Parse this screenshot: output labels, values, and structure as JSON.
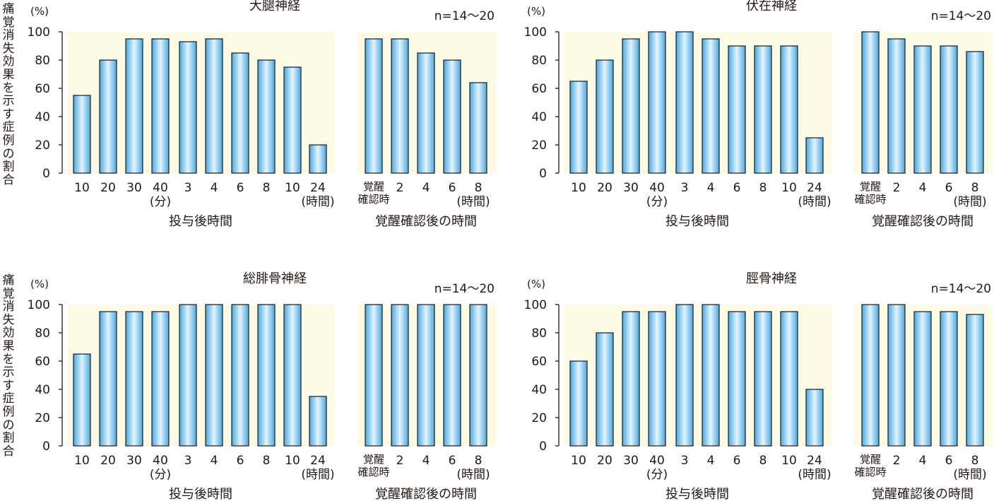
{
  "y_axis_label": "痛覚消失効果を示す症例の割合",
  "y_unit": "(%)",
  "n_label": "n=14～20",
  "x_group_labels": {
    "post_dose": "投与後時間",
    "post_awake": "覚醒確認後の時間"
  },
  "colors": {
    "plot_background": "#fdfbe6",
    "bar_fill_edge": "#4aa8e0",
    "bar_fill_center": "#e3f4fc",
    "bar_stroke": "#1b1b1b",
    "text": "#231815"
  },
  "chart_data": [
    {
      "type": "bar",
      "title": "大腿神経",
      "ylim": [
        0,
        100
      ],
      "yticks": [
        0,
        20,
        40,
        60,
        80,
        100
      ],
      "categories": [
        "10",
        "20",
        "30",
        "40",
        "3",
        "4",
        "6",
        "8",
        "10",
        "24",
        "覚醒確認時",
        "2",
        "4",
        "6",
        "8"
      ],
      "values": [
        55,
        80,
        95,
        95,
        93,
        95,
        85,
        80,
        75,
        20,
        95,
        95,
        85,
        80,
        64
      ],
      "unit_labels": {
        "3": "(分)",
        "9": "(時間)",
        "14": "(時間)"
      }
    },
    {
      "type": "bar",
      "title": "伏在神経",
      "ylim": [
        0,
        100
      ],
      "yticks": [
        0,
        20,
        40,
        60,
        80,
        100
      ],
      "categories": [
        "10",
        "20",
        "30",
        "40",
        "3",
        "4",
        "6",
        "8",
        "10",
        "24",
        "覚醒確認時",
        "2",
        "4",
        "6",
        "8"
      ],
      "values": [
        65,
        80,
        95,
        100,
        100,
        95,
        90,
        90,
        90,
        25,
        100,
        95,
        90,
        90,
        86
      ],
      "unit_labels": {
        "3": "(分)",
        "9": "(時間)",
        "14": "(時間)"
      }
    },
    {
      "type": "bar",
      "title": "総腓骨神経",
      "ylim": [
        0,
        100
      ],
      "yticks": [
        0,
        20,
        40,
        60,
        80,
        100
      ],
      "categories": [
        "10",
        "20",
        "30",
        "40",
        "3",
        "4",
        "6",
        "8",
        "10",
        "24",
        "覚醒確認時",
        "2",
        "4",
        "6",
        "8"
      ],
      "values": [
        65,
        95,
        95,
        95,
        100,
        100,
        100,
        100,
        100,
        35,
        100,
        100,
        100,
        100,
        100
      ],
      "unit_labels": {
        "3": "(分)",
        "9": "(時間)",
        "14": "(時間)"
      }
    },
    {
      "type": "bar",
      "title": "脛骨神経",
      "ylim": [
        0,
        100
      ],
      "yticks": [
        0,
        20,
        40,
        60,
        80,
        100
      ],
      "categories": [
        "10",
        "20",
        "30",
        "40",
        "3",
        "4",
        "6",
        "8",
        "10",
        "24",
        "覚醒確認時",
        "2",
        "4",
        "6",
        "8"
      ],
      "values": [
        60,
        80,
        95,
        95,
        100,
        100,
        95,
        95,
        95,
        40,
        100,
        100,
        95,
        95,
        93
      ],
      "unit_labels": {
        "3": "(分)",
        "9": "(時間)",
        "14": "(時間)"
      }
    }
  ]
}
